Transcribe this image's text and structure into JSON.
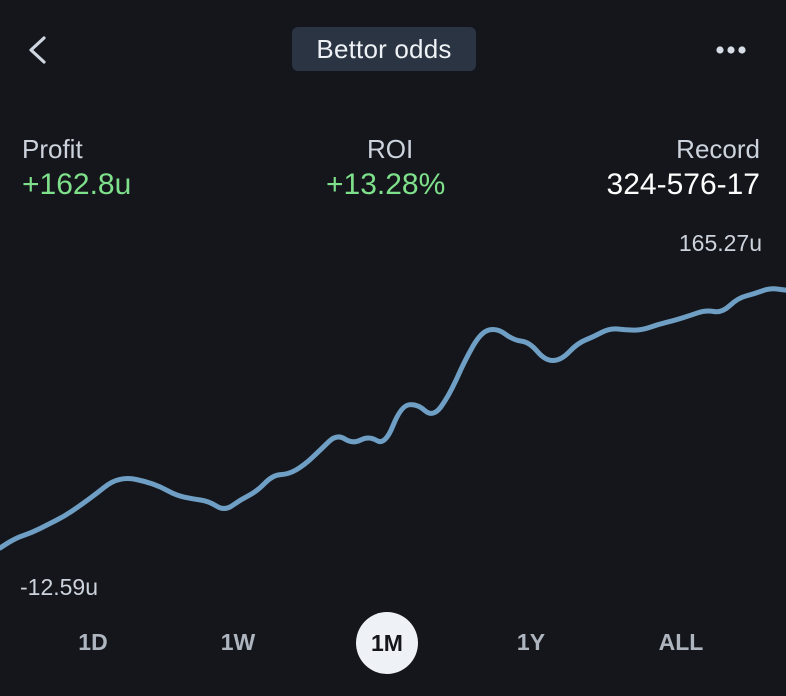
{
  "header": {
    "title": "Bettor odds",
    "back_icon": "chevron-left-icon",
    "more_icon": "more-horizontal-icon"
  },
  "stats": {
    "profit": {
      "label": "Profit",
      "value": "+162.8u"
    },
    "roi": {
      "label": "ROI",
      "value": "+13.28%"
    },
    "record": {
      "label": "Record",
      "value": "324-576-17"
    }
  },
  "chart": {
    "max_label": "165.27u",
    "min_label": "-12.59u",
    "line_color": "#6f9fc4",
    "positive_color": "#7ee08a"
  },
  "ranges": {
    "items": [
      "1D",
      "1W",
      "1M",
      "1Y",
      "ALL"
    ],
    "selected": "1M"
  },
  "chart_data": {
    "type": "line",
    "title": "",
    "xlabel": "",
    "ylabel": "",
    "ylim": [
      -12.59,
      165.27
    ],
    "series": [
      {
        "values": [
          -12.59,
          -5.6,
          -2.0,
          3.5,
          9.1,
          16.5,
          24.5,
          33.3,
          35.5,
          33.1,
          29.4,
          23.3,
          21.0,
          19.5,
          12.6,
          20.5,
          26.0,
          37.4,
          37.8,
          44.4,
          54.8,
          65.5,
          58.5,
          64.2,
          57.5,
          84.7,
          86.1,
          76.6,
          91.7,
          116.2,
          135.3,
          137.9,
          129.6,
          128.3,
          115.4,
          115.9,
          127.5,
          131.9,
          137.8,
          136.6,
          136.4,
          140.2,
          143.0,
          146.4,
          150.2,
          148.2,
          158.4,
          161.2,
          165.27,
          163.8
        ]
      }
    ]
  }
}
